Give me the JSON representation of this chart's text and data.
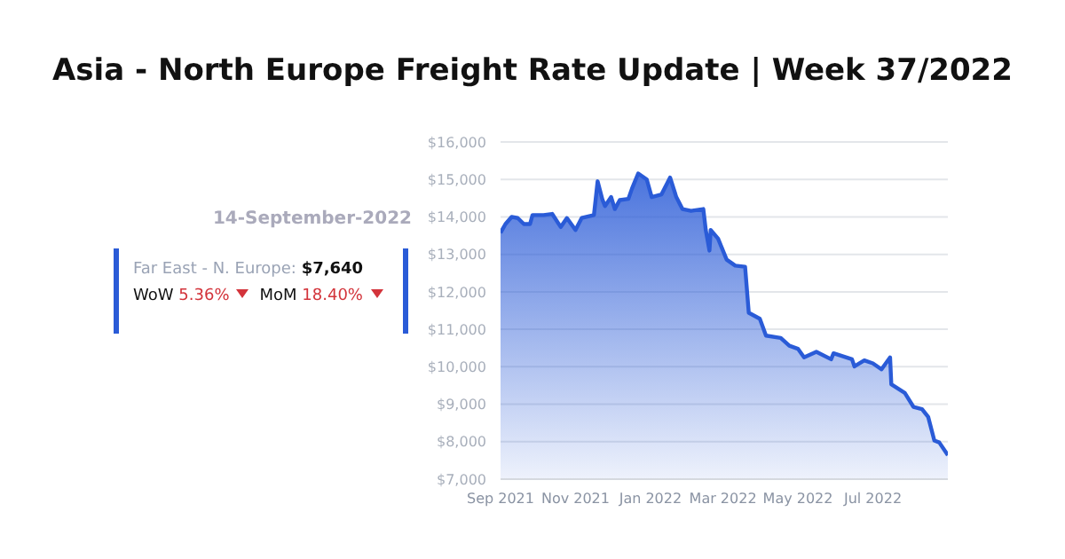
{
  "chart_data": {
    "type": "area",
    "title": "Asia - North Europe Freight Rate Update | Week 37/2022",
    "annotations": [
      "14-September-2022",
      "Far East - N. Europe:",
      "$7,640",
      "WoW",
      "5.36%",
      "MoM",
      "18.40%"
    ],
    "x": [
      "2021-09-01",
      "2021-09-05",
      "2021-09-10",
      "2021-09-15",
      "2021-09-20",
      "2021-09-25",
      "2021-09-27",
      "2021-10-06",
      "2021-10-13",
      "2021-10-20",
      "2021-10-25",
      "2021-11-01",
      "2021-11-06",
      "2021-11-16",
      "2021-11-19",
      "2021-11-23",
      "2021-11-25",
      "2021-11-30",
      "2021-12-03",
      "2021-12-07",
      "2021-12-14",
      "2021-12-17",
      "2021-12-22",
      "2021-12-29",
      "2022-01-02",
      "2022-01-10",
      "2022-01-17",
      "2022-01-22",
      "2022-01-27",
      "2022-02-03",
      "2022-02-13",
      "2022-02-15",
      "2022-02-18",
      "2022-02-19",
      "2022-02-25",
      "2022-03-04",
      "2022-03-11",
      "2022-03-19",
      "2022-03-22",
      "2022-03-31",
      "2022-04-05",
      "2022-04-17",
      "2022-04-24",
      "2022-05-01",
      "2022-05-06",
      "2022-05-16",
      "2022-05-28",
      "2022-05-30",
      "2022-06-14",
      "2022-06-16",
      "2022-06-24",
      "2022-07-01",
      "2022-07-08",
      "2022-07-15",
      "2022-07-16",
      "2022-07-27",
      "2022-08-03",
      "2022-08-10",
      "2022-08-15",
      "2022-08-20",
      "2022-08-24",
      "2022-08-31"
    ],
    "series": [
      {
        "color": "#2a5bd7",
        "values": [
          13575,
          13810,
          14000,
          13970,
          13810,
          13810,
          14050,
          14050,
          14080,
          13730,
          13970,
          13650,
          13970,
          14050,
          14950,
          14450,
          14290,
          14530,
          14210,
          14450,
          14480,
          14760,
          15160,
          15000,
          14530,
          14600,
          15050,
          14530,
          14210,
          14160,
          14210,
          13650,
          13100,
          13650,
          13420,
          12860,
          12700,
          12670,
          11440,
          11280,
          10830,
          10770,
          10560,
          10480,
          10250,
          10400,
          10200,
          10360,
          10200,
          10010,
          10170,
          10090,
          9930,
          10250,
          9530,
          9300,
          8930,
          8870,
          8660,
          8030,
          7980,
          7640
        ]
      }
    ],
    "xlim": [
      "2021-09-01",
      "2022-08-31"
    ],
    "xticks": [
      {
        "value": "2021-09-01",
        "label": "Sep 2021"
      },
      {
        "value": "2021-11-01",
        "label": "Nov 2021"
      },
      {
        "value": "2022-01-01",
        "label": "Jan 2022"
      },
      {
        "value": "2022-03-01",
        "label": "Mar 2022"
      },
      {
        "value": "2022-05-01",
        "label": "May 2022"
      },
      {
        "value": "2022-07-01",
        "label": "Jul 2022"
      }
    ],
    "ylim": [
      7000,
      16000
    ],
    "yticks": [
      {
        "value": 7000,
        "label": "$7,000"
      },
      {
        "value": 8000,
        "label": "$8,000"
      },
      {
        "value": 9000,
        "label": "$9,000"
      },
      {
        "value": 10000,
        "label": "$10,000"
      },
      {
        "value": 11000,
        "label": "$11,000"
      },
      {
        "value": 12000,
        "label": "$12,000"
      },
      {
        "value": 13000,
        "label": "$13,000"
      },
      {
        "value": 14000,
        "label": "$14,000"
      },
      {
        "value": 15000,
        "label": "$15,000"
      },
      {
        "value": 16000,
        "label": "$16,000"
      }
    ],
    "grid": "y",
    "legend": false,
    "marker": "none",
    "line_style": "solid"
  }
}
